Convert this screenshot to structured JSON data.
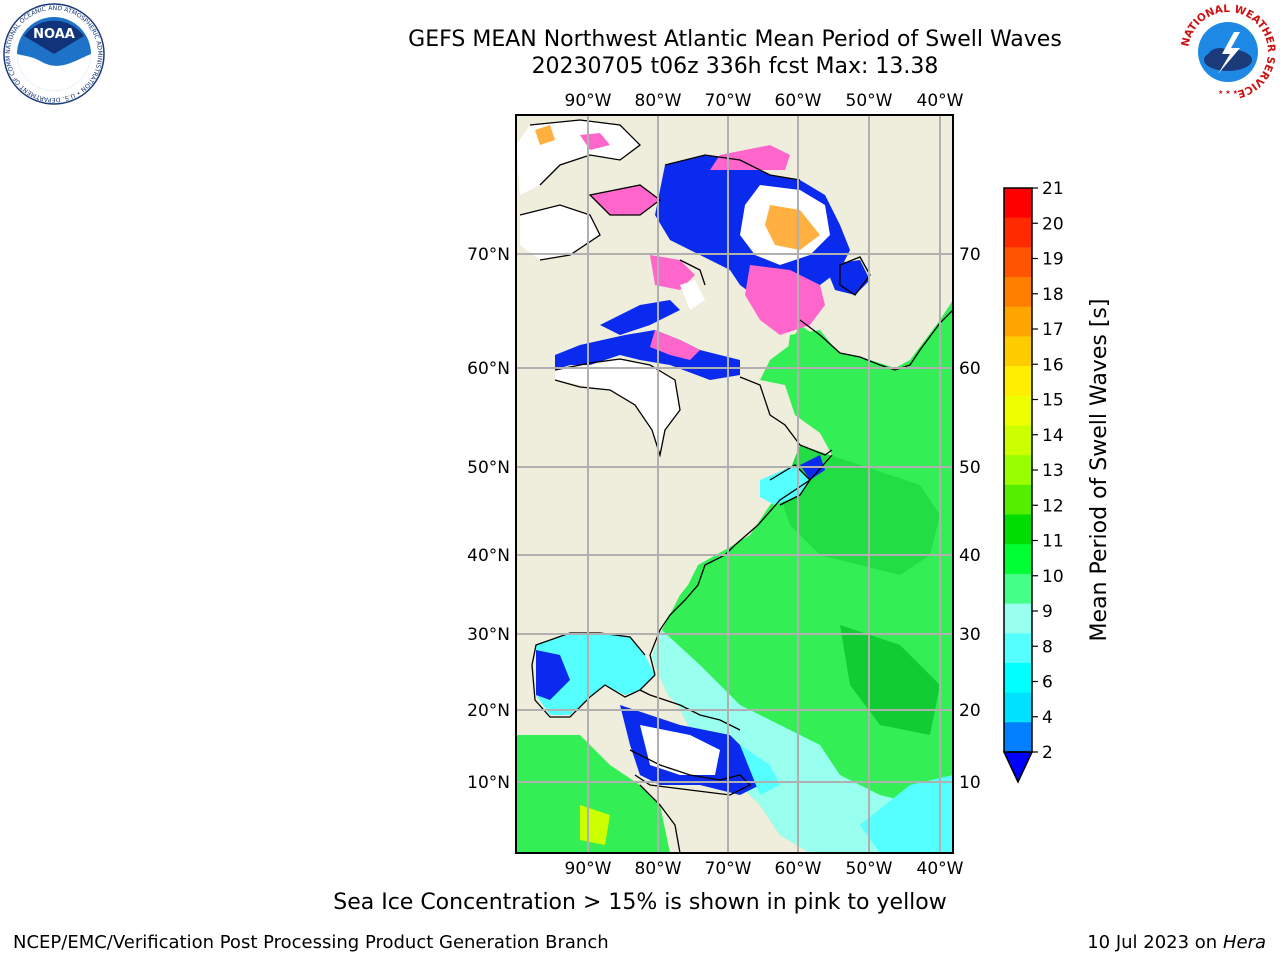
{
  "header": {
    "title_line1": "GEFS MEAN Northwest Atlantic Mean Period of Swell Waves",
    "title_line2": "20230705 t06z 336h fcst   Max: 13.38"
  },
  "subtitle": "Sea Ice Concentration > 15% is shown in pink to yellow",
  "footer": {
    "left": "NCEP/EMC/Verification Post Processing Product Generation Branch",
    "date": "10 Jul 2023 on ",
    "machine": "Hera"
  },
  "logos": {
    "noaa_text": "NOAA",
    "noaa_ring_text": "NATIONAL OCEANIC AND ATMOSPHERIC ADMINISTRATION • U.S. DEPARTMENT OF COMMERCE •",
    "nws_ring_text": "NATIONAL WEATHER SERVICE"
  },
  "map": {
    "lon_labels": [
      "90°W",
      "80°W",
      "70°W",
      "60°W",
      "50°W",
      "40°W"
    ],
    "lat_labels_left": [
      "70°N",
      "60°N",
      "50°N",
      "40°N",
      "30°N",
      "20°N",
      "10°N"
    ],
    "lat_labels_right": [
      "70°N",
      "60°N",
      "50°N",
      "40°N",
      "30°N",
      "20°N",
      "10°N"
    ],
    "colors": {
      "land": "#efeddc",
      "grid": "#b0b0b0",
      "ice_pink": "#ff66cc",
      "ice_orange": "#ffb040"
    }
  },
  "colorbar": {
    "label": "Mean Period of Swell Waves [s]",
    "ticks": [
      "21",
      "20",
      "19",
      "18",
      "17",
      "16",
      "15",
      "14",
      "13",
      "12",
      "11",
      "10",
      "9",
      "8",
      "6",
      "4",
      "2"
    ],
    "colors": [
      "#ff0000",
      "#ff2a00",
      "#ff5500",
      "#ff8000",
      "#ffa500",
      "#ffcc00",
      "#ffee00",
      "#eeff00",
      "#ccff00",
      "#99ff00",
      "#55ee00",
      "#00dd00",
      "#00ff33",
      "#44ff88",
      "#99ffee",
      "#55ffff",
      "#00ffff",
      "#00e0ff",
      "#0080ff"
    ],
    "extend_color": "#0000ff"
  }
}
